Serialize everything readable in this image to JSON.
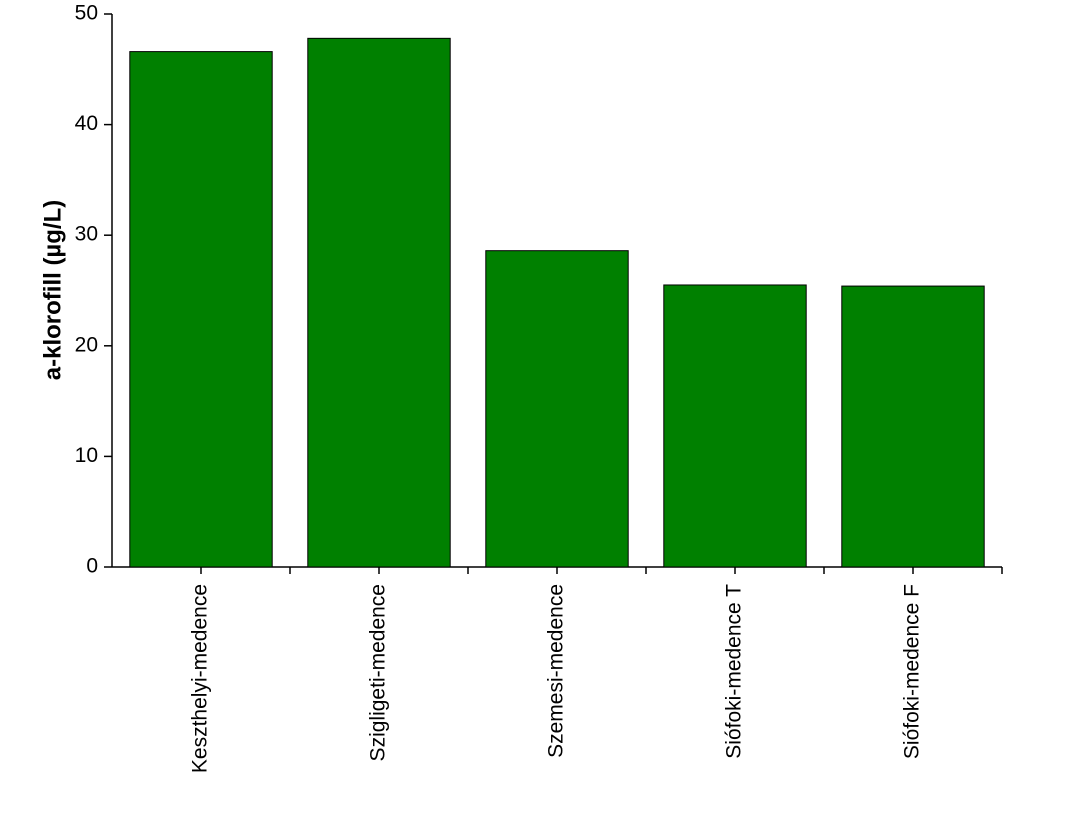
{
  "chart_data": {
    "type": "bar",
    "y_label": "a-klorofill (µg/L)",
    "categories": [
      "Keszthelyi-medence",
      "Szigligeti-medence",
      "Szemesi-medence",
      "Siófoki-medence T",
      "Siófoki-medence F"
    ],
    "values": [
      46.6,
      47.8,
      28.6,
      25.5,
      25.4
    ],
    "color": "#008000",
    "ylim": [
      0,
      50
    ],
    "yticks": [
      0,
      10,
      20,
      30,
      40,
      50
    ],
    "grid": false
  }
}
